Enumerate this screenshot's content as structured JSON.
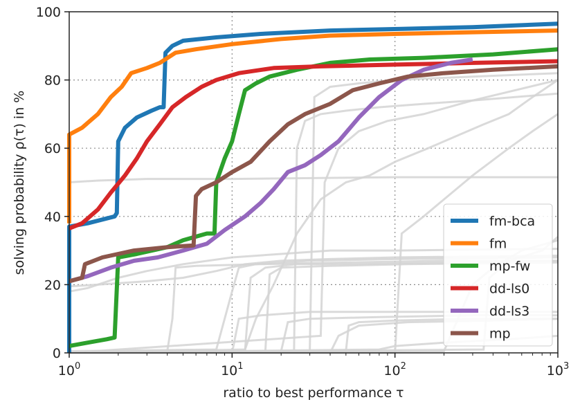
{
  "chart_data": {
    "type": "line",
    "xlabel": "ratio to best performance τ",
    "ylabel": "solving probability ρ(τ) in %",
    "xscale": "log",
    "xlim": [
      1,
      1000
    ],
    "ylim": [
      0,
      100
    ],
    "xticks": [
      {
        "value": 1,
        "base": "10",
        "exp": "0"
      },
      {
        "value": 10,
        "base": "10",
        "exp": "1"
      },
      {
        "value": 100,
        "base": "10",
        "exp": "2"
      },
      {
        "value": 1000,
        "base": "10",
        "exp": "3"
      }
    ],
    "yticks": [
      0,
      20,
      40,
      60,
      80,
      100
    ],
    "grid": "dotted",
    "legend_position": "bottom-right",
    "series": [
      {
        "name": "fm-bca",
        "color": "#1f77b4",
        "points": [
          [
            1,
            0
          ],
          [
            1,
            37
          ],
          [
            1.3,
            38
          ],
          [
            1.9,
            40
          ],
          [
            1.96,
            41
          ],
          [
            2.0,
            62
          ],
          [
            2.2,
            66
          ],
          [
            2.6,
            69
          ],
          [
            3.2,
            71
          ],
          [
            3.6,
            72
          ],
          [
            3.8,
            72
          ],
          [
            3.9,
            88
          ],
          [
            4.3,
            90
          ],
          [
            5,
            91.5
          ],
          [
            8,
            92.5
          ],
          [
            15,
            93.5
          ],
          [
            40,
            94.5
          ],
          [
            110,
            95
          ],
          [
            300,
            95.5
          ],
          [
            1000,
            96.5
          ]
        ]
      },
      {
        "name": "fm",
        "color": "#ff7f0e",
        "points": [
          [
            1,
            38
          ],
          [
            1,
            64
          ],
          [
            1.2,
            66
          ],
          [
            1.5,
            70
          ],
          [
            1.8,
            75
          ],
          [
            2.1,
            78
          ],
          [
            2.4,
            82
          ],
          [
            3,
            83.5
          ],
          [
            3.6,
            85
          ],
          [
            4.5,
            88
          ],
          [
            6,
            89
          ],
          [
            10,
            90.5
          ],
          [
            20,
            92
          ],
          [
            40,
            93
          ],
          [
            100,
            93.5
          ],
          [
            300,
            94
          ],
          [
            1000,
            94.5
          ]
        ]
      },
      {
        "name": "mp-fw",
        "color": "#2ca02c",
        "points": [
          [
            1,
            2
          ],
          [
            1.3,
            3
          ],
          [
            1.7,
            4
          ],
          [
            1.9,
            4.5
          ],
          [
            2.0,
            28
          ],
          [
            2.6,
            29
          ],
          [
            4,
            31
          ],
          [
            5,
            33
          ],
          [
            7,
            35
          ],
          [
            7.8,
            35
          ],
          [
            8,
            50
          ],
          [
            9,
            57
          ],
          [
            10,
            62
          ],
          [
            11,
            70
          ],
          [
            12,
            77
          ],
          [
            14,
            79
          ],
          [
            17,
            81
          ],
          [
            25,
            83
          ],
          [
            40,
            85
          ],
          [
            70,
            86
          ],
          [
            150,
            86.5
          ],
          [
            400,
            87.5
          ],
          [
            1000,
            89
          ]
        ]
      },
      {
        "name": "dd-ls0",
        "color": "#d62728",
        "points": [
          [
            1,
            36.5
          ],
          [
            1.2,
            38
          ],
          [
            1.5,
            42
          ],
          [
            1.8,
            47
          ],
          [
            2.2,
            52
          ],
          [
            2.6,
            57
          ],
          [
            3,
            62
          ],
          [
            3.6,
            67
          ],
          [
            4.3,
            72
          ],
          [
            5.2,
            75
          ],
          [
            6.5,
            78
          ],
          [
            8,
            80
          ],
          [
            11,
            82
          ],
          [
            18,
            83.5
          ],
          [
            35,
            84
          ],
          [
            100,
            84.5
          ],
          [
            300,
            85
          ],
          [
            1000,
            85.5
          ]
        ]
      },
      {
        "name": "dd-ls3",
        "color": "#9467bd",
        "points": [
          [
            1,
            21
          ],
          [
            1.3,
            22.5
          ],
          [
            1.8,
            25
          ],
          [
            2.5,
            27
          ],
          [
            3.5,
            28
          ],
          [
            5,
            30
          ],
          [
            7,
            32
          ],
          [
            9,
            36
          ],
          [
            12,
            40
          ],
          [
            15,
            44
          ],
          [
            18,
            48
          ],
          [
            22,
            53
          ],
          [
            28,
            55
          ],
          [
            35,
            58
          ],
          [
            45,
            62
          ],
          [
            60,
            69
          ],
          [
            80,
            75
          ],
          [
            110,
            80
          ],
          [
            150,
            83
          ],
          [
            220,
            85
          ],
          [
            300,
            86
          ]
        ]
      },
      {
        "name": "mp",
        "color": "#8c564b",
        "points": [
          [
            1,
            21
          ],
          [
            1.2,
            22
          ],
          [
            1.25,
            26
          ],
          [
            1.6,
            28
          ],
          [
            2.5,
            30
          ],
          [
            4,
            31
          ],
          [
            5.8,
            31.5
          ],
          [
            6,
            46
          ],
          [
            6.5,
            48
          ],
          [
            8,
            50
          ],
          [
            10,
            53
          ],
          [
            13,
            56
          ],
          [
            17,
            62
          ],
          [
            22,
            67
          ],
          [
            28,
            70
          ],
          [
            40,
            73
          ],
          [
            55,
            77
          ],
          [
            80,
            79
          ],
          [
            120,
            81
          ],
          [
            200,
            82
          ],
          [
            400,
            83
          ],
          [
            1000,
            84
          ]
        ]
      }
    ]
  }
}
